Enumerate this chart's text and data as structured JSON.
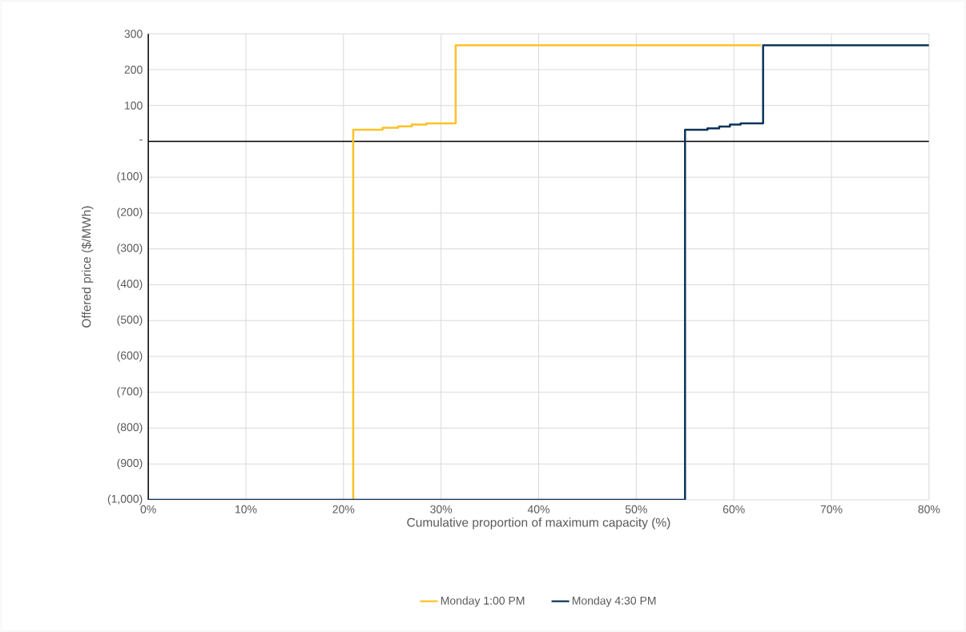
{
  "chart_data": {
    "type": "step",
    "xlabel": "Cumulative proportion of maximum capacity (%)",
    "ylabel": "Offered price ($/MWh)",
    "xlim": [
      0,
      80
    ],
    "ylim": [
      -1000,
      300
    ],
    "xticks": [
      {
        "value": 0,
        "label": "0%"
      },
      {
        "value": 10,
        "label": "10%"
      },
      {
        "value": 20,
        "label": "20%"
      },
      {
        "value": 30,
        "label": "30%"
      },
      {
        "value": 40,
        "label": "40%"
      },
      {
        "value": 50,
        "label": "50%"
      },
      {
        "value": 60,
        "label": "60%"
      },
      {
        "value": 70,
        "label": "70%"
      },
      {
        "value": 80,
        "label": "80%"
      }
    ],
    "yticks": [
      {
        "value": -1000,
        "label": "(1,000)"
      },
      {
        "value": -900,
        "label": "(900)"
      },
      {
        "value": -800,
        "label": "(800)"
      },
      {
        "value": -700,
        "label": "(700)"
      },
      {
        "value": -600,
        "label": "(600)"
      },
      {
        "value": -500,
        "label": "(500)"
      },
      {
        "value": -400,
        "label": "(400)"
      },
      {
        "value": -300,
        "label": "(300)"
      },
      {
        "value": -200,
        "label": "(200)"
      },
      {
        "value": -100,
        "label": "(100)"
      },
      {
        "value": 0,
        "label": "-"
      },
      100,
      200,
      300
    ],
    "grid": true,
    "legend": "bottom",
    "ref_lines": [
      {
        "axis": "y",
        "value": 0,
        "color": "#000000"
      }
    ],
    "series": [
      {
        "name": "Monday 1:00 PM",
        "color": "#ffc125",
        "x": [
          21,
          21,
          24,
          25.6,
          27,
          28.5,
          31.5,
          62.8
        ],
        "values": [
          -1000,
          32,
          38,
          42,
          47,
          50,
          268,
          268
        ]
      },
      {
        "name": "Monday 4:30 PM",
        "color": "#0b3357",
        "x": [
          0,
          55,
          57.3,
          58.5,
          59.6,
          60.7,
          63,
          80
        ],
        "values": [
          -1000,
          32,
          36,
          41,
          47,
          50,
          268,
          268
        ]
      }
    ]
  }
}
